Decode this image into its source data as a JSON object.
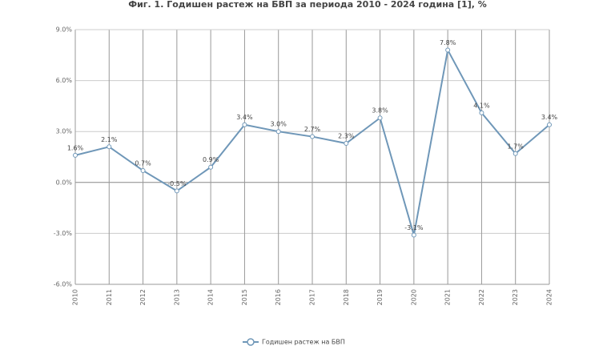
{
  "chart_data": {
    "type": "line",
    "title": "Фиг. 1. Годишен растеж на БВП за периода 2010 - 2024 година [1], %",
    "categories": [
      "2010",
      "2011",
      "2012",
      "2013",
      "2014",
      "2015",
      "2016",
      "2017",
      "2018",
      "2019",
      "2020",
      "2021",
      "2022",
      "2023",
      "2024"
    ],
    "series": [
      {
        "name": "Годишен растеж на БВП",
        "color": "#6f97b8",
        "values": [
          1.6,
          2.1,
          0.7,
          -0.5,
          0.9,
          3.4,
          3.0,
          2.7,
          2.3,
          3.8,
          -3.1,
          7.8,
          4.1,
          1.7,
          3.4
        ],
        "value_labels": [
          "1.6%",
          "2.1%",
          "0.7%",
          "-0.5%",
          "0.9%",
          "3.4%",
          "3.0%",
          "2.7%",
          "2.3%",
          "3.8%",
          "-3.1%",
          "7.8%",
          "4.1%",
          "1.7%",
          "3.4%"
        ]
      }
    ],
    "ylim": [
      -6,
      9
    ],
    "yticks": [
      {
        "value": -6,
        "label": "-6.0%"
      },
      {
        "value": -3,
        "label": "-3.0%"
      },
      {
        "value": 0,
        "label": "0.0%"
      },
      {
        "value": 3,
        "label": "3.0%"
      },
      {
        "value": 6,
        "label": "6.0%"
      },
      {
        "value": 9,
        "label": "9.0%"
      }
    ],
    "grid": true,
    "legend": "bottom"
  }
}
